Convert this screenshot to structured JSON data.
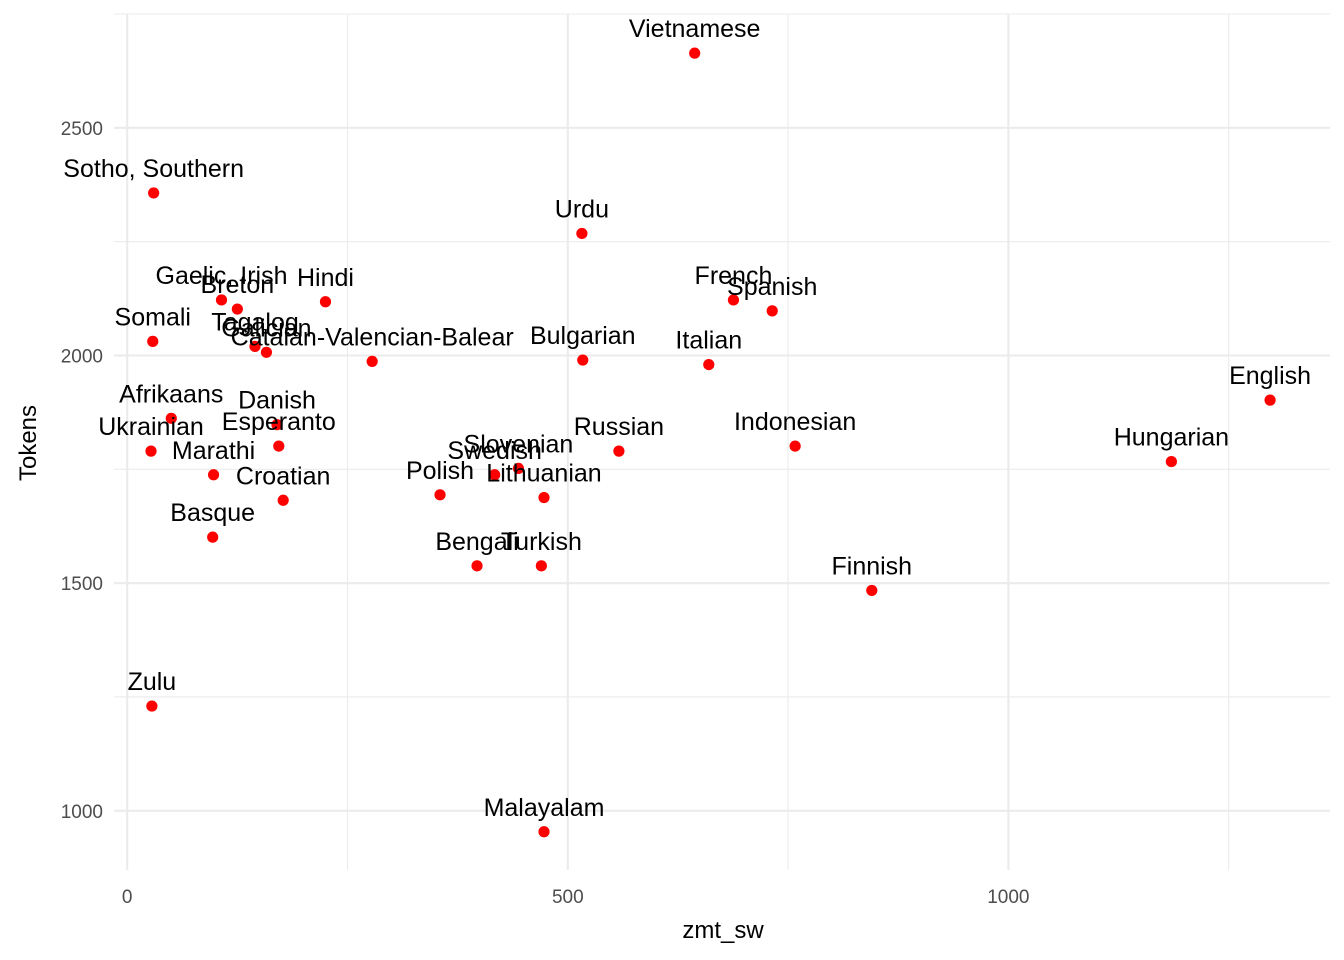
{
  "chart_data": {
    "type": "scatter",
    "xlabel": "zmt_sw",
    "ylabel": "Tokens",
    "xlim": [
      -15,
      1365
    ],
    "ylim": [
      870,
      2750
    ],
    "x_ticks": [
      0,
      500,
      1000
    ],
    "x_tick_labels": [
      "0",
      "500",
      "1000"
    ],
    "y_ticks": [
      1000,
      1500,
      2000,
      2500
    ],
    "y_tick_labels": [
      "1000",
      "1500",
      "2000",
      "2500"
    ],
    "grid": true,
    "point_color": "#ff0000",
    "points": [
      {
        "label": "Vietnamese",
        "x": 644,
        "y": 2664
      },
      {
        "label": "Sotho, Southern",
        "x": 30,
        "y": 2357
      },
      {
        "label": "Urdu",
        "x": 516,
        "y": 2268
      },
      {
        "label": "Gaelic, Irish",
        "x": 107,
        "y": 2122
      },
      {
        "label": "Breton",
        "x": 125,
        "y": 2102
      },
      {
        "label": "Hindi",
        "x": 225,
        "y": 2118
      },
      {
        "label": "French",
        "x": 688,
        "y": 2122
      },
      {
        "label": "Spanish",
        "x": 732,
        "y": 2098
      },
      {
        "label": "Somali",
        "x": 29,
        "y": 2031
      },
      {
        "label": "Tagalog",
        "x": 145,
        "y": 2020
      },
      {
        "label": "Galician",
        "x": 158,
        "y": 2007
      },
      {
        "label": "Catalan-Valencian-Balear",
        "x": 278,
        "y": 1987
      },
      {
        "label": "Bulgarian",
        "x": 517,
        "y": 1990
      },
      {
        "label": "Italian",
        "x": 660,
        "y": 1980
      },
      {
        "label": "English",
        "x": 1297,
        "y": 1902
      },
      {
        "label": "Afrikaans",
        "x": 50,
        "y": 1862
      },
      {
        "label": "Danish",
        "x": 170,
        "y": 1848
      },
      {
        "label": "Esperanto",
        "x": 172,
        "y": 1801
      },
      {
        "label": "Ukrainian",
        "x": 27,
        "y": 1790
      },
      {
        "label": "Marathi",
        "x": 98,
        "y": 1738
      },
      {
        "label": "Russian",
        "x": 558,
        "y": 1790
      },
      {
        "label": "Indonesian",
        "x": 758,
        "y": 1801
      },
      {
        "label": "Hungarian",
        "x": 1185,
        "y": 1767
      },
      {
        "label": "Slovenian",
        "x": 444,
        "y": 1752
      },
      {
        "label": "Swedish",
        "x": 417,
        "y": 1738
      },
      {
        "label": "Polish",
        "x": 355,
        "y": 1694
      },
      {
        "label": "Lithuanian",
        "x": 473,
        "y": 1688
      },
      {
        "label": "Croatian",
        "x": 177,
        "y": 1682
      },
      {
        "label": "Basque",
        "x": 97,
        "y": 1601
      },
      {
        "label": "Bengali",
        "x": 397,
        "y": 1538
      },
      {
        "label": "Turkish",
        "x": 470,
        "y": 1538
      },
      {
        "label": "Finnish",
        "x": 845,
        "y": 1484
      },
      {
        "label": "Zulu",
        "x": 28,
        "y": 1230
      },
      {
        "label": "Malayalam",
        "x": 473,
        "y": 954
      }
    ]
  }
}
